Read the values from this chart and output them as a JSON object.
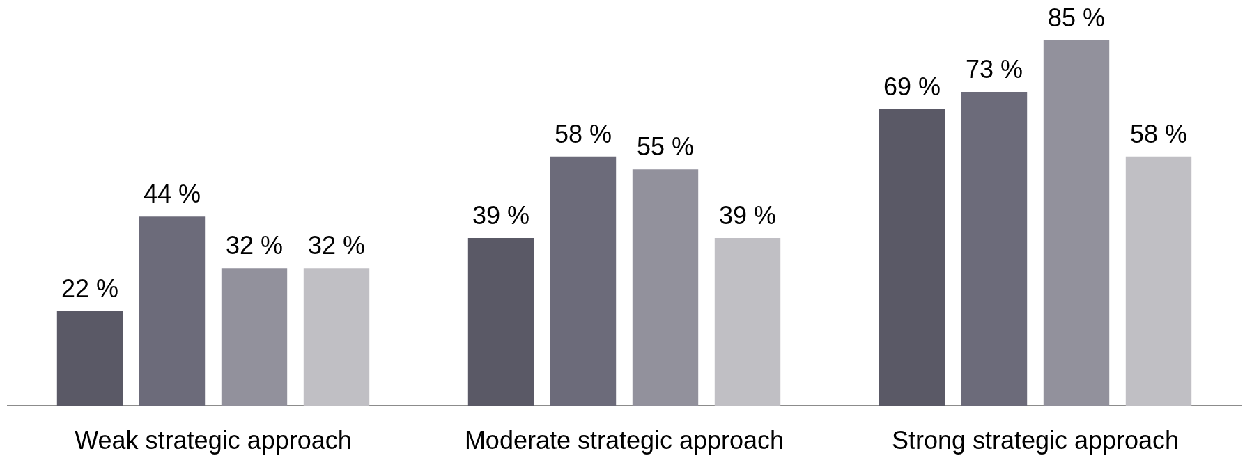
{
  "chart_data": {
    "type": "bar",
    "categories": [
      "Weak strategic approach",
      "Moderate strategic approach",
      "Strong strategic approach"
    ],
    "series": [
      {
        "color": "#5a5966",
        "values": [
          22,
          39,
          69
        ],
        "value_labels": [
          "22 %",
          "39 %",
          "69 %"
        ]
      },
      {
        "color": "#6c6b7a",
        "values": [
          44,
          58,
          73
        ],
        "value_labels": [
          "44 %",
          "58 %",
          "73 %"
        ]
      },
      {
        "color": "#92919c",
        "values": [
          32,
          55,
          85
        ],
        "value_labels": [
          "32 %",
          "55 %",
          "85 %"
        ]
      },
      {
        "color": "#c0bfc4",
        "values": [
          32,
          39,
          58
        ],
        "value_labels": [
          "32 %",
          "39 %",
          "58 %"
        ]
      }
    ]
  }
}
